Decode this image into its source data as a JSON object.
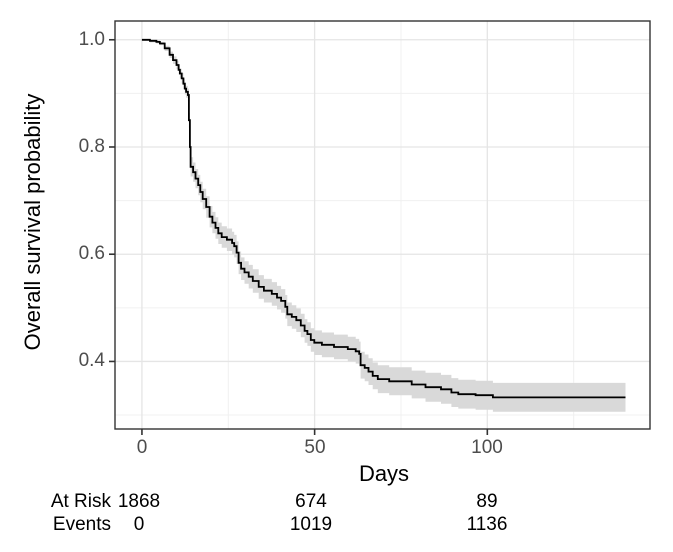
{
  "chart_data": {
    "type": "line",
    "subtype": "kaplan_meier_survival_curve_with_confidence_band",
    "title": "",
    "xlabel": "Days",
    "ylabel": "Overall survival probability",
    "x_ticks": [
      0,
      50,
      100
    ],
    "x_tick_labels": [
      "0",
      "50",
      "100"
    ],
    "x_minor_gridlines": [
      25,
      75,
      125
    ],
    "y_ticks": [
      1.0,
      0.8,
      0.6,
      0.4
    ],
    "y_tick_labels": [
      "1.0",
      "0.8",
      "0.6",
      "0.4"
    ],
    "y_minor_gridlines": [
      0.9,
      0.7,
      0.5,
      0.3
    ],
    "xlim": [
      -7.8,
      147.1
    ],
    "ylim": [
      0.274,
      1.035
    ],
    "grid": "major_and_minor",
    "legend": false,
    "series": [
      {
        "name": "Overall survival",
        "style": "step",
        "color": "#000000",
        "ci_fill": "#d9d9d9",
        "columns": [
          "time_days",
          "survival",
          "ci_lower",
          "ci_upper"
        ],
        "points": [
          [
            0,
            1.0,
            0.998,
            1.0
          ],
          [
            2.3,
            0.998,
            0.995,
            1.0
          ],
          [
            4.2,
            0.996,
            0.993,
            0.999
          ],
          [
            5.2,
            0.993,
            0.99,
            0.996
          ],
          [
            6.6,
            0.984,
            0.979,
            0.989
          ],
          [
            8.0,
            0.972,
            0.966,
            0.978
          ],
          [
            9.0,
            0.962,
            0.955,
            0.969
          ],
          [
            10.0,
            0.953,
            0.945,
            0.961
          ],
          [
            10.6,
            0.944,
            0.935,
            0.953
          ],
          [
            11.0,
            0.937,
            0.928,
            0.946
          ],
          [
            11.5,
            0.928,
            0.918,
            0.938
          ],
          [
            12.0,
            0.918,
            0.908,
            0.928
          ],
          [
            12.4,
            0.909,
            0.898,
            0.92
          ],
          [
            12.8,
            0.903,
            0.892,
            0.914
          ],
          [
            13.3,
            0.897,
            0.885,
            0.909
          ],
          [
            13.6,
            0.85,
            0.836,
            0.864
          ],
          [
            13.9,
            0.8,
            0.784,
            0.816
          ],
          [
            14.1,
            0.763,
            0.745,
            0.781
          ],
          [
            14.8,
            0.753,
            0.735,
            0.771
          ],
          [
            15.5,
            0.741,
            0.723,
            0.759
          ],
          [
            16.3,
            0.729,
            0.71,
            0.748
          ],
          [
            16.9,
            0.716,
            0.697,
            0.735
          ],
          [
            17.6,
            0.703,
            0.684,
            0.722
          ],
          [
            18.6,
            0.688,
            0.668,
            0.708
          ],
          [
            19.6,
            0.67,
            0.65,
            0.69
          ],
          [
            20.4,
            0.659,
            0.639,
            0.679
          ],
          [
            21.3,
            0.649,
            0.629,
            0.669
          ],
          [
            22.1,
            0.639,
            0.619,
            0.659
          ],
          [
            23.1,
            0.632,
            0.612,
            0.652
          ],
          [
            24.6,
            0.627,
            0.606,
            0.648
          ],
          [
            26.1,
            0.621,
            0.6,
            0.642
          ],
          [
            26.7,
            0.615,
            0.594,
            0.636
          ],
          [
            27.4,
            0.603,
            0.582,
            0.624
          ],
          [
            28.0,
            0.584,
            0.563,
            0.605
          ],
          [
            28.7,
            0.573,
            0.552,
            0.594
          ],
          [
            29.7,
            0.566,
            0.545,
            0.587
          ],
          [
            30.9,
            0.558,
            0.536,
            0.58
          ],
          [
            32.1,
            0.55,
            0.528,
            0.572
          ],
          [
            33.8,
            0.539,
            0.517,
            0.561
          ],
          [
            35.3,
            0.532,
            0.51,
            0.554
          ],
          [
            37.6,
            0.526,
            0.504,
            0.548
          ],
          [
            39.1,
            0.519,
            0.497,
            0.541
          ],
          [
            40.3,
            0.513,
            0.491,
            0.535
          ],
          [
            41.5,
            0.502,
            0.48,
            0.524
          ],
          [
            42.1,
            0.488,
            0.466,
            0.51
          ],
          [
            43.4,
            0.483,
            0.461,
            0.505
          ],
          [
            44.7,
            0.477,
            0.455,
            0.499
          ],
          [
            46.0,
            0.467,
            0.445,
            0.489
          ],
          [
            47.1,
            0.457,
            0.435,
            0.479
          ],
          [
            47.9,
            0.451,
            0.429,
            0.473
          ],
          [
            48.9,
            0.44,
            0.418,
            0.462
          ],
          [
            49.9,
            0.435,
            0.412,
            0.458
          ],
          [
            52.1,
            0.431,
            0.408,
            0.454
          ],
          [
            55.6,
            0.427,
            0.404,
            0.45
          ],
          [
            59.6,
            0.423,
            0.4,
            0.446
          ],
          [
            61.9,
            0.419,
            0.396,
            0.442
          ],
          [
            62.9,
            0.414,
            0.391,
            0.437
          ],
          [
            63.3,
            0.393,
            0.368,
            0.418
          ],
          [
            64.5,
            0.388,
            0.363,
            0.413
          ],
          [
            65.6,
            0.381,
            0.356,
            0.406
          ],
          [
            66.8,
            0.373,
            0.348,
            0.398
          ],
          [
            68.3,
            0.367,
            0.341,
            0.393
          ],
          [
            71.6,
            0.363,
            0.337,
            0.389
          ],
          [
            78.1,
            0.357,
            0.331,
            0.383
          ],
          [
            82.1,
            0.352,
            0.325,
            0.379
          ],
          [
            86.6,
            0.348,
            0.321,
            0.375
          ],
          [
            89.6,
            0.342,
            0.315,
            0.369
          ],
          [
            91.6,
            0.339,
            0.312,
            0.366
          ],
          [
            96.6,
            0.337,
            0.31,
            0.364
          ],
          [
            101.6,
            0.333,
            0.306,
            0.36
          ],
          [
            140.0,
            0.333,
            0.306,
            0.36
          ]
        ]
      }
    ]
  },
  "risk_table": {
    "column_times": [
      0,
      50,
      100
    ],
    "rows": [
      {
        "label": "At Risk",
        "values": [
          "1868",
          "674",
          "89"
        ]
      },
      {
        "label": "Events",
        "values": [
          "0",
          "1019",
          "1136"
        ]
      }
    ]
  },
  "colors": {
    "background": "#ffffff",
    "panel_background": "#ffffff",
    "panel_border": "#333333",
    "grid_major": "#e5e5e5",
    "grid_minor": "#f0f0f0",
    "tick_mark": "#333333",
    "tick_label": "#4d4d4d",
    "axis_title": "#000000",
    "table_text": "#000000",
    "curve": "#000000",
    "ci_band": "#d9d9d9"
  }
}
